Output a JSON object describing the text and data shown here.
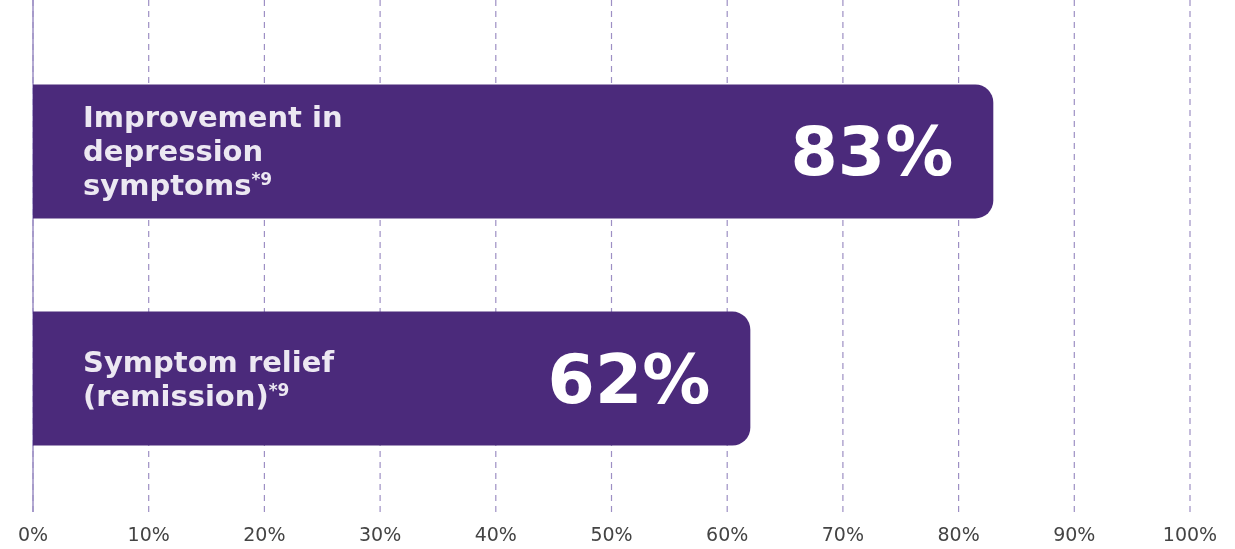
{
  "chart_data": {
    "type": "bar",
    "orientation": "horizontal",
    "categories": [
      "Improvement in depression symptoms$^{*9}$",
      "Symptom relief (remission)$^{*9}$"
    ],
    "values": [
      83,
      62
    ],
    "color": "#4b2a7b",
    "value_labels": [
      "83%",
      "62%"
    ],
    "xlim": [
      0,
      100
    ],
    "xticks": [
      {
        "value": 0,
        "label": "0%"
      },
      {
        "value": 10,
        "label": "10%"
      },
      {
        "value": 20,
        "label": "20%"
      },
      {
        "value": 30,
        "label": "30%"
      },
      {
        "value": 40,
        "label": "40%"
      },
      {
        "value": 50,
        "label": "50%"
      },
      {
        "value": 60,
        "label": "60%"
      },
      {
        "value": 70,
        "label": "70%"
      },
      {
        "value": 80,
        "label": "80%"
      },
      {
        "value": 90,
        "label": "90%"
      },
      {
        "value": 100,
        "label": "100%"
      }
    ],
    "grid": "x"
  }
}
